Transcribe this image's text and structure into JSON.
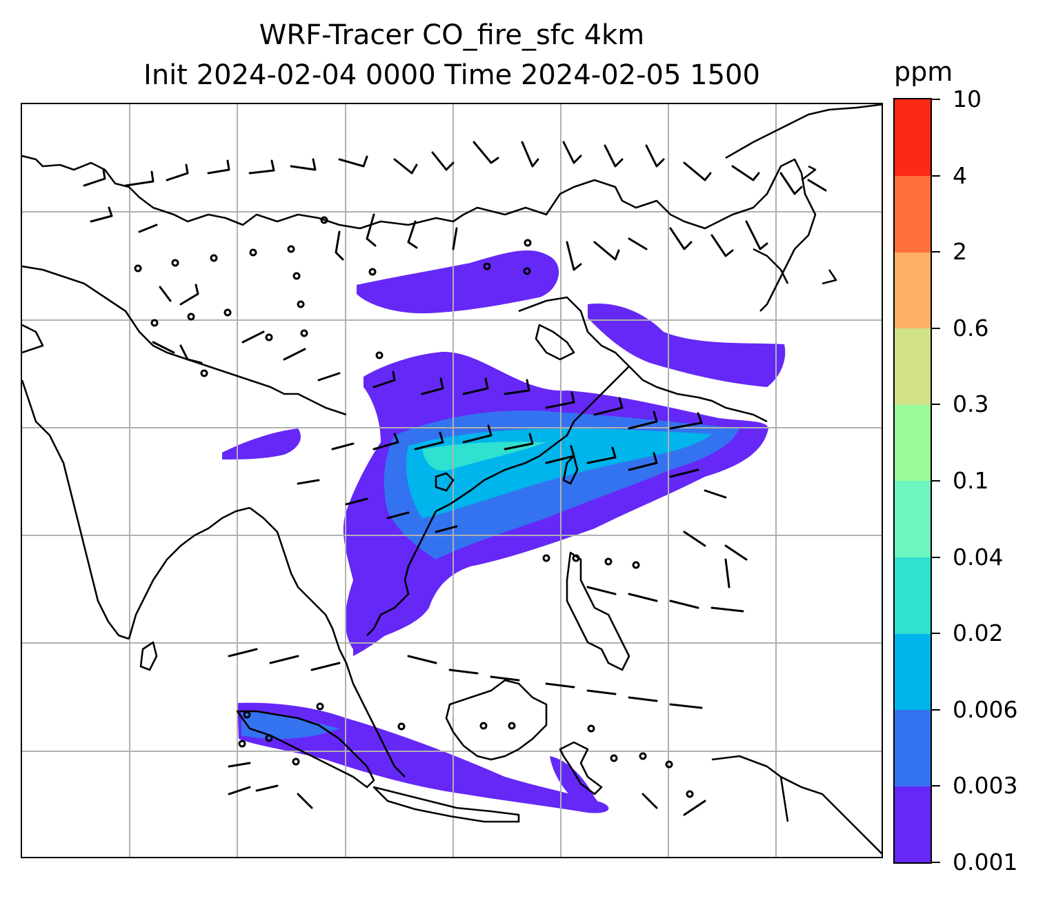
{
  "title": {
    "line1": "WRF-Tracer CO_fire_sfc 4km",
    "line2": "Init 2024-02-04 0000 Time 2024-02-05 1500"
  },
  "colorbar": {
    "unit": "ppm",
    "levels": [
      "0.001",
      "0.003",
      "0.006",
      "0.02",
      "0.04",
      "0.1",
      "0.3",
      "0.6",
      "2",
      "4",
      "10"
    ],
    "colors": [
      "#6528f7",
      "#3473f0",
      "#00b4ec",
      "#30e0d0",
      "#6cf7bf",
      "#9afb9a",
      "#d1e188",
      "#fcb065",
      "#fd6f3b",
      "#fa2a16"
    ]
  },
  "map": {
    "gridlines": true,
    "plume_color": "#6528f7",
    "plume_mid_color": "#3473f0",
    "plume_core_color": "#00b4ec",
    "plume_peak_color": "#30e0d0"
  }
}
